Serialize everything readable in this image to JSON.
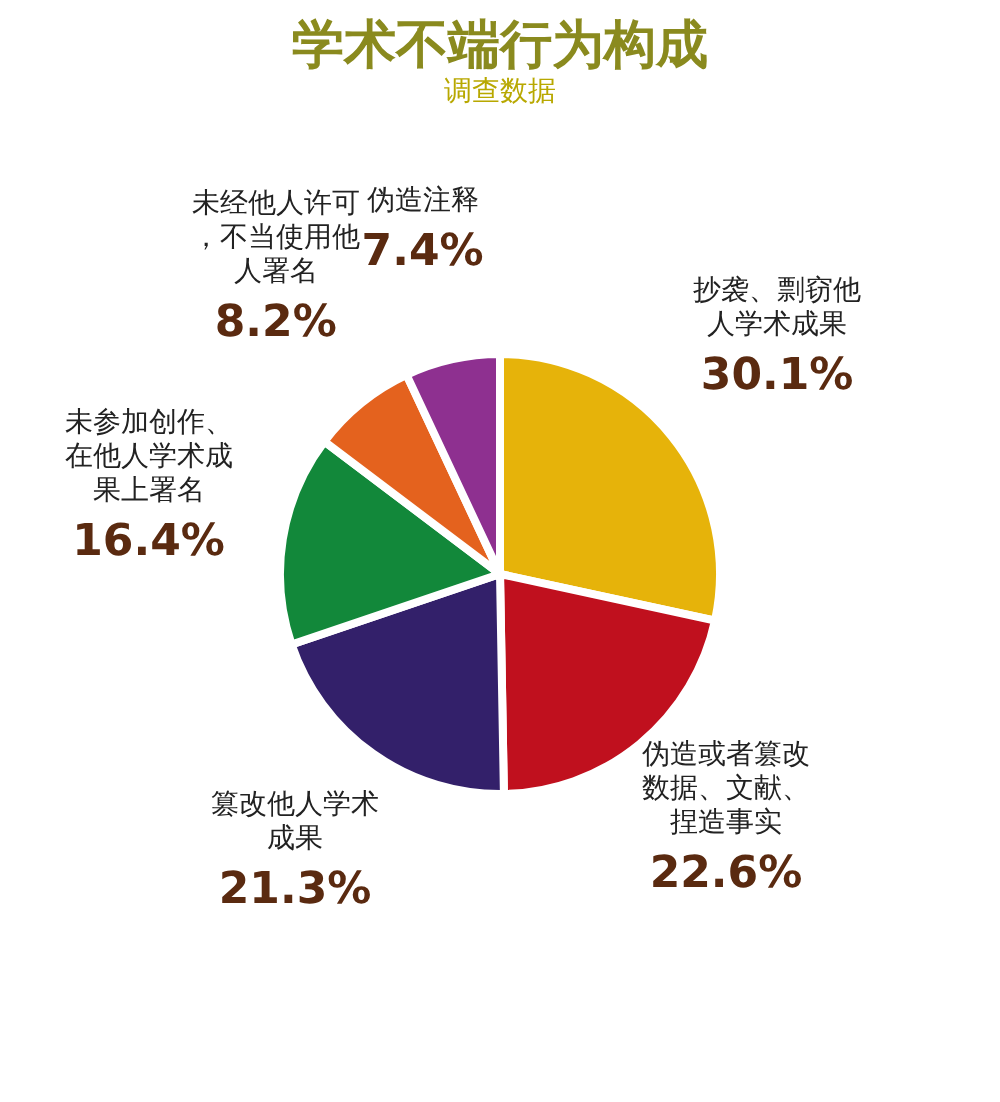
{
  "chart_data": {
    "type": "pie",
    "title": "学术不端行为构成",
    "subtitle": "调查数据",
    "categories": [
      "抄袭、剽窃他人学术成果",
      "伪造或者篡改数据、文献、捏造事实",
      "篡改他人学术成果",
      "未参加创作、在他人学术成果上署名",
      "未经他人许可，不当使用他人署名",
      "伪造注释"
    ],
    "values": [
      30.1,
      22.6,
      21.3,
      16.4,
      8.2,
      7.4
    ],
    "colors": [
      "#e6b30a",
      "#c0101e",
      "#33206a",
      "#12883a",
      "#e4621e",
      "#8e3090"
    ],
    "value_labels": [
      "30.1%",
      "22.6%",
      "21.3%",
      "16.4%",
      "8.2%",
      "7.4%"
    ]
  }
}
